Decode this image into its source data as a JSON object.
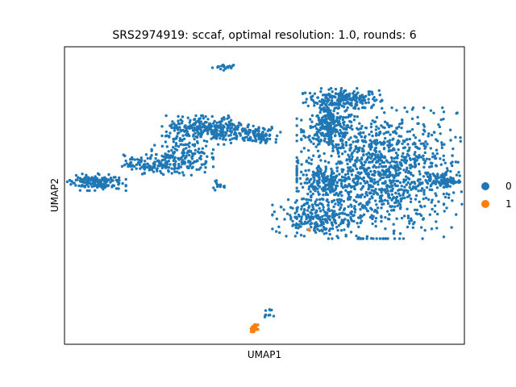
{
  "chart_data": {
    "type": "scatter",
    "title": "SRS2974919: sccaf, optimal resolution: 1.0, rounds: 6",
    "xlabel": "UMAP1",
    "ylabel": "UMAP2",
    "grid": false,
    "xticks": [],
    "yticks": [],
    "legend": {
      "placement": "right",
      "entries": [
        {
          "label": "0",
          "color": "#1f77b4"
        },
        {
          "label": "1",
          "color": "#ff7f0e"
        }
      ]
    },
    "xlim": [
      0,
      100
    ],
    "ylim": [
      0,
      100
    ],
    "clusters": [
      {
        "series": "0",
        "cx": 40.3,
        "cy": 93.2,
        "sx": 1.6,
        "sy": 0.5,
        "n": 20
      },
      {
        "series": "0",
        "cx": 69.5,
        "cy": 82.5,
        "sx": 4.5,
        "sy": 1.6,
        "n": 220
      },
      {
        "series": "0",
        "cx": 66.2,
        "cy": 75.5,
        "sx": 1.2,
        "sy": 2.5,
        "n": 80
      },
      {
        "series": "0",
        "cx": 66.5,
        "cy": 72.0,
        "sx": 3.3,
        "sy": 3.3,
        "n": 180
      },
      {
        "series": "0",
        "cx": 79.0,
        "cy": 57.5,
        "sx": 9.5,
        "sy": 10.0,
        "n": 1200
      },
      {
        "series": "0",
        "cx": 65.0,
        "cy": 54.0,
        "sx": 3.0,
        "sy": 3.3,
        "n": 160
      },
      {
        "series": "0",
        "cx": 63.0,
        "cy": 42.5,
        "sx": 5.0,
        "sy": 2.8,
        "n": 230
      },
      {
        "series": "0",
        "cx": 94.5,
        "cy": 55.0,
        "sx": 2.0,
        "sy": 1.0,
        "n": 70
      },
      {
        "series": "0",
        "cx": 7.0,
        "cy": 54.5,
        "sx": 3.8,
        "sy": 1.3,
        "n": 170
      },
      {
        "series": "0",
        "cx": 21.0,
        "cy": 60.5,
        "sx": 3.0,
        "sy": 1.5,
        "n": 110
      },
      {
        "series": "0",
        "cx": 29.5,
        "cy": 63.0,
        "sx": 3.5,
        "sy": 2.8,
        "n": 170
      },
      {
        "series": "0",
        "cx": 36.5,
        "cy": 72.0,
        "sx": 5.5,
        "sy": 2.2,
        "n": 330
      },
      {
        "series": "0",
        "cx": 48.5,
        "cy": 70.5,
        "sx": 2.5,
        "sy": 1.3,
        "n": 90
      },
      {
        "series": "0",
        "cx": 38.0,
        "cy": 53.5,
        "sx": 0.9,
        "sy": 0.8,
        "n": 15
      },
      {
        "series": "0",
        "cx": 51.0,
        "cy": 10.5,
        "sx": 0.6,
        "sy": 0.6,
        "n": 10
      },
      {
        "series": "1",
        "cx": 47.5,
        "cy": 5.3,
        "sx": 0.4,
        "sy": 0.6,
        "n": 45
      },
      {
        "series": "1",
        "cx": 61.0,
        "cy": 38.5,
        "sx": 0.2,
        "sy": 0.2,
        "n": 2
      }
    ]
  }
}
